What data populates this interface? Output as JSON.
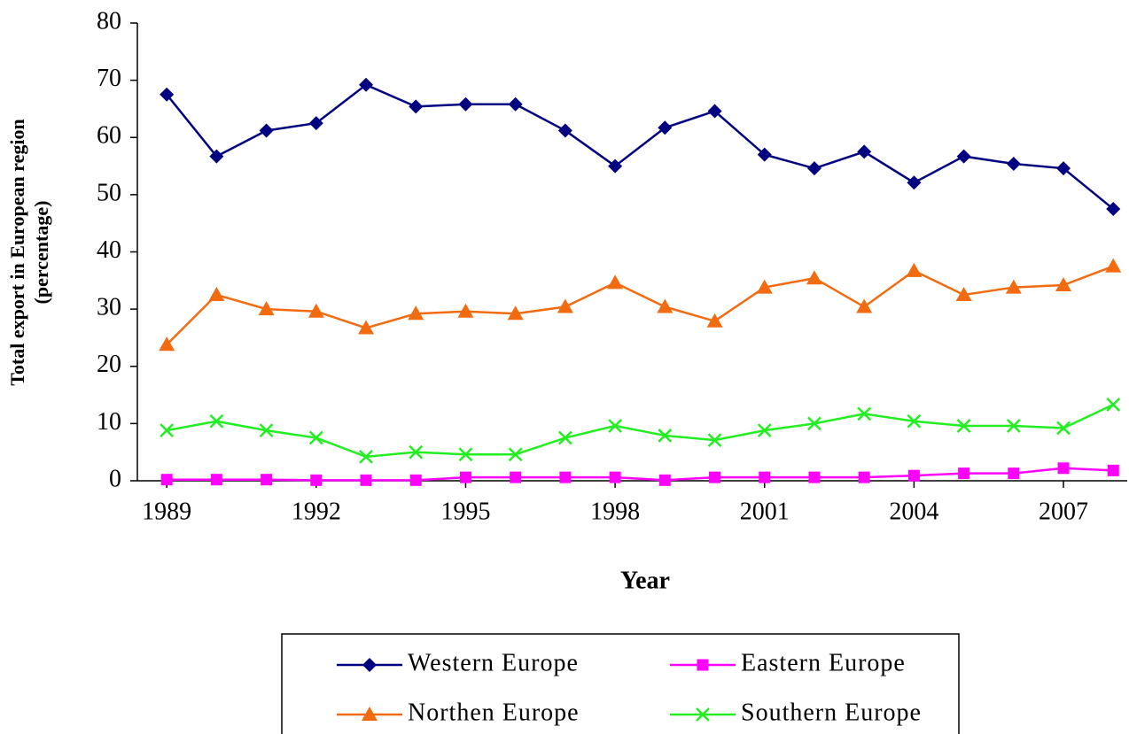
{
  "chart_data": {
    "type": "line",
    "x_label": "Year",
    "y_label": [
      "Total export in European region",
      "(percentage)"
    ],
    "x": [
      1989,
      1990,
      1991,
      1992,
      1993,
      1994,
      1995,
      1996,
      1997,
      1998,
      1999,
      2000,
      2001,
      2002,
      2003,
      2004,
      2005,
      2006,
      2007,
      2008
    ],
    "xlim": [
      1988.41,
      2008.28
    ],
    "xticks": [
      1989,
      1992,
      1995,
      1998,
      2001,
      2004,
      2007
    ],
    "ylim": [
      0,
      80
    ],
    "yticks": [
      0,
      10,
      20,
      30,
      40,
      50,
      60,
      70,
      80
    ],
    "series": [
      {
        "name": "Western Europe",
        "color": "#000080",
        "marker": "diamond",
        "values": [
          67.5,
          56.7,
          61.2,
          62.5,
          69.2,
          65.4,
          65.8,
          65.8,
          61.2,
          55.0,
          61.7,
          64.6,
          57.0,
          54.6,
          57.5,
          52.1,
          56.7,
          55.4,
          54.6,
          47.5
        ]
      },
      {
        "name": "Eastern Europe",
        "color": "#ff00ff",
        "marker": "square",
        "values": [
          0.2,
          0.2,
          0.2,
          0.1,
          0.1,
          0.1,
          0.6,
          0.6,
          0.6,
          0.6,
          0.1,
          0.6,
          0.6,
          0.6,
          0.6,
          0.9,
          1.3,
          1.3,
          2.2,
          1.8
        ]
      },
      {
        "name": "Northen Europe",
        "color": "#f26b10",
        "marker": "triangle",
        "values": [
          23.8,
          32.5,
          30.0,
          29.6,
          26.7,
          29.2,
          29.6,
          29.2,
          30.4,
          34.6,
          30.4,
          27.9,
          33.8,
          35.4,
          30.4,
          36.7,
          32.5,
          33.8,
          34.2,
          37.5
        ]
      },
      {
        "name": "Southern Europe",
        "color": "#22ee22",
        "marker": "x",
        "values": [
          8.8,
          10.4,
          8.8,
          7.5,
          4.2,
          5.0,
          4.6,
          4.6,
          7.5,
          9.6,
          7.9,
          7.1,
          8.8,
          10.0,
          11.7,
          10.4,
          9.6,
          9.6,
          9.2,
          13.3
        ]
      }
    ]
  }
}
